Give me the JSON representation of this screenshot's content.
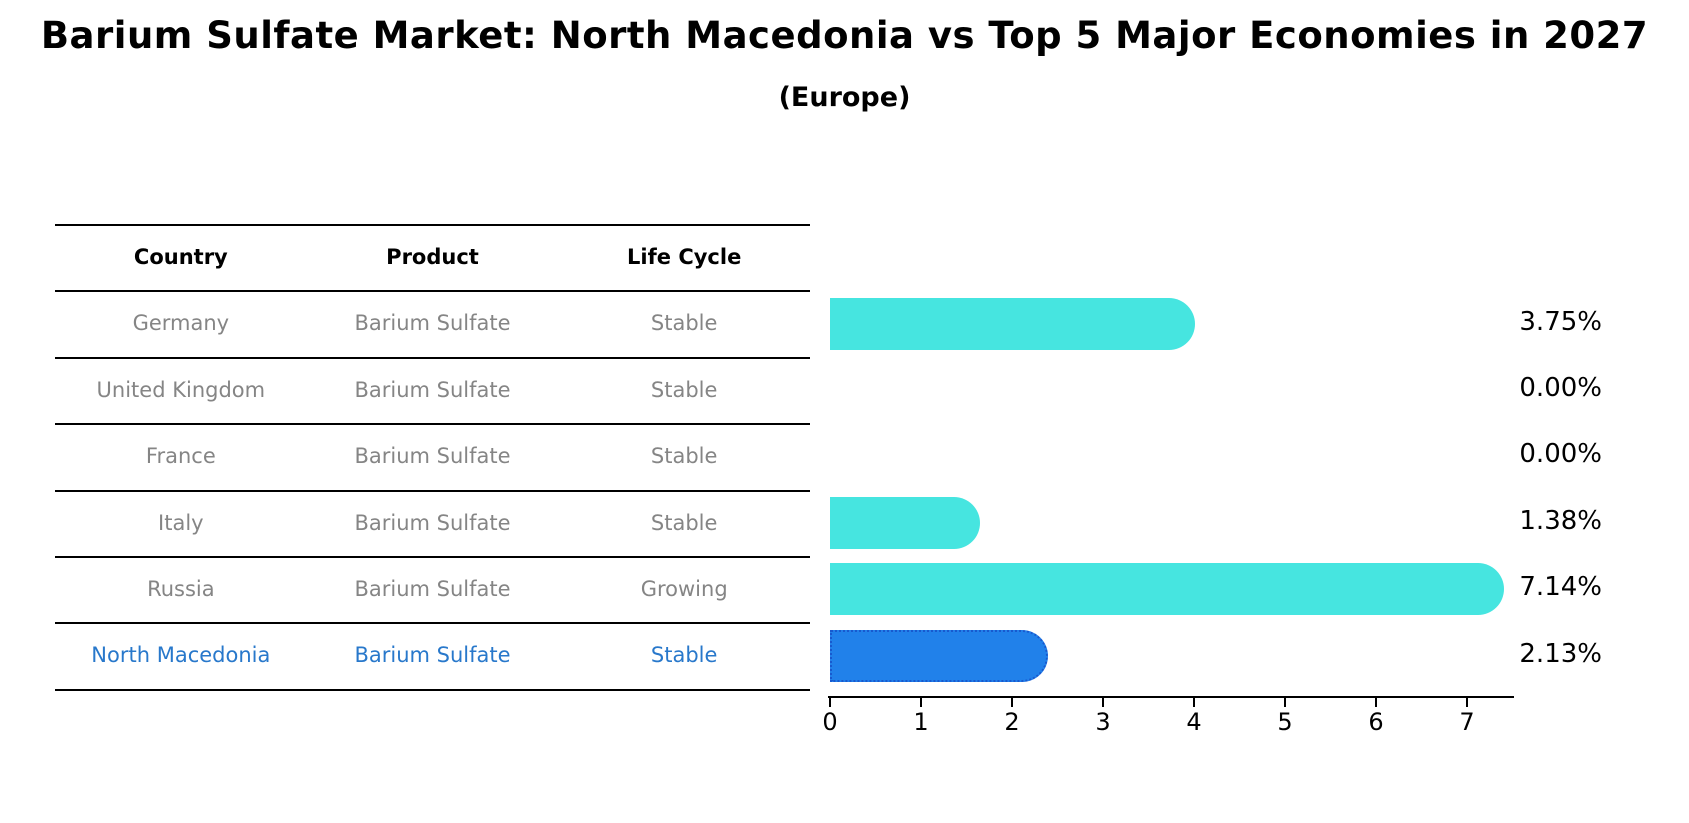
{
  "title": "Barium Sulfate Market: North Macedonia vs Top 5 Major Economies in 2027",
  "subtitle": "(Europe)",
  "table": {
    "headers": [
      "Country",
      "Product",
      "Life Cycle"
    ],
    "rows": [
      {
        "country": "Germany",
        "product": "Barium Sulfate",
        "life_cycle": "Stable",
        "highlighted": false
      },
      {
        "country": "United Kingdom",
        "product": "Barium Sulfate",
        "life_cycle": "Stable",
        "highlighted": false
      },
      {
        "country": "France",
        "product": "Barium Sulfate",
        "life_cycle": "Stable",
        "highlighted": false
      },
      {
        "country": "Italy",
        "product": "Barium Sulfate",
        "life_cycle": "Stable",
        "highlighted": false
      },
      {
        "country": "Russia",
        "product": "Barium Sulfate",
        "life_cycle": "Growing",
        "highlighted": false
      },
      {
        "country": "North Macedonia",
        "product": "Barium Sulfate",
        "life_cycle": "Stable",
        "highlighted": true
      }
    ]
  },
  "chart_data": {
    "type": "bar",
    "orientation": "horizontal",
    "title": "Barium Sulfate Market: North Macedonia vs Top 5 Major Economies in 2027",
    "subtitle": "(Europe)",
    "categories": [
      "Germany",
      "United Kingdom",
      "France",
      "Italy",
      "Russia",
      "North Macedonia"
    ],
    "values": [
      3.75,
      0.0,
      0.0,
      1.38,
      7.14,
      2.13
    ],
    "value_labels": [
      "3.75%",
      "0.00%",
      "0.00%",
      "1.38%",
      "7.14%",
      "2.13%"
    ],
    "xlabel": "",
    "ylabel": "",
    "xlim": [
      0,
      7.5
    ],
    "xticks": [
      "0",
      "1",
      "2",
      "3",
      "4",
      "5",
      "6",
      "7"
    ],
    "grid": false,
    "legend": false,
    "highlight_index": 5
  },
  "colors": {
    "bar_color": "#46e5e0",
    "highlight_bar_color": "#2181ea",
    "highlight_bar_border": "#1859cf",
    "highlight_text": "#2878cb",
    "muted_text": "#858585",
    "axis": "#000000",
    "background": "#ffffff"
  }
}
